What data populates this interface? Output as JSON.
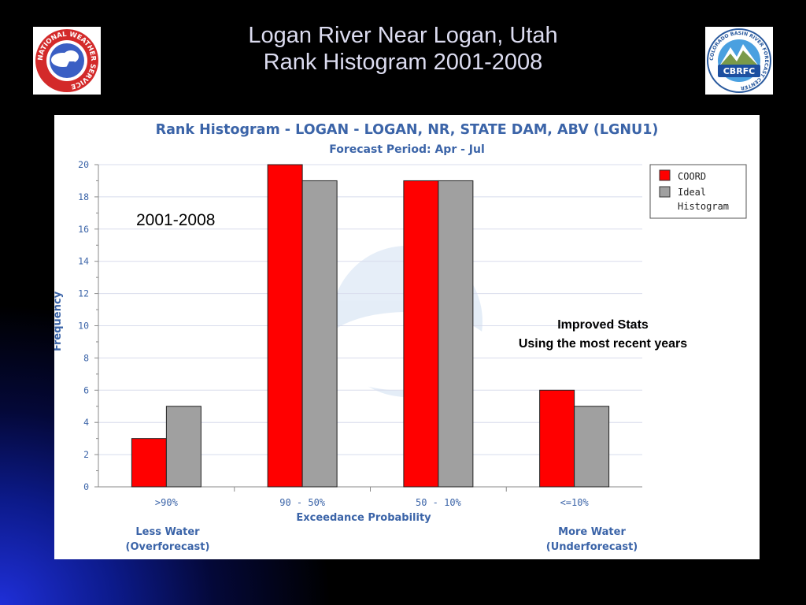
{
  "slide": {
    "title_line1": "Logan River Near Logan, Utah",
    "title_line2": "Rank Histogram 2001-2008",
    "nws_logo_text": "NATIONAL WEATHER SERVICE",
    "cbrfc_logo_text": "CBRFC",
    "cbrfc_ring_text": "COLORADO BASIN RIVER FORECAST CENTER"
  },
  "chart_data": {
    "type": "bar",
    "title": "Rank Histogram - LOGAN - LOGAN, NR, STATE DAM, ABV (LGNU1)",
    "subtitle": "Forecast Period: Apr - Jul",
    "xlabel": "Exceedance Probability",
    "ylabel": "Frequency",
    "categories": [
      ">90%",
      "90 - 50%",
      "50 - 10%",
      "<=10%"
    ],
    "series": [
      {
        "name": "COORD",
        "values": [
          3,
          20,
          19,
          6
        ],
        "color": "#ff0000"
      },
      {
        "name": "Ideal Histogram",
        "values": [
          5,
          19,
          19,
          5
        ],
        "color": "#a0a0a0"
      }
    ],
    "ylim": [
      0,
      20
    ],
    "yticks": [
      0,
      2,
      4,
      6,
      8,
      10,
      12,
      14,
      16,
      18,
      20
    ],
    "grid": true,
    "legend_position": "top-right",
    "annotations": {
      "period": "2001-2008",
      "note_line1": "Improved Stats",
      "note_line2": "Using the most recent years",
      "left_label_line1": "Less Water",
      "left_label_line2": "(Overforecast)",
      "right_label_line1": "More Water",
      "right_label_line2": "(Underforecast)"
    },
    "colors": {
      "title": "#3b64a8",
      "axis_text": "#3b64a8",
      "grid": "#d8dcec"
    }
  }
}
